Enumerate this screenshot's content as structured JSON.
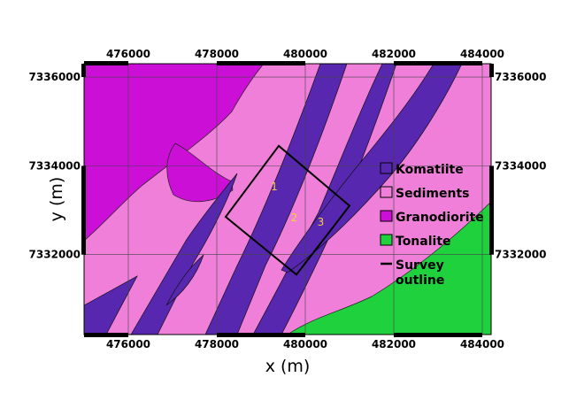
{
  "map": {
    "x_axis_label": "x (m)",
    "y_axis_label": "y (m)",
    "x_extent": [
      475000,
      484200
    ],
    "y_extent": [
      7330200,
      7336300
    ],
    "x_ticks": [
      476000,
      478000,
      480000,
      482000,
      484000
    ],
    "y_ticks": [
      7332000,
      7334000,
      7336000
    ],
    "x_tick_labels": [
      "476000",
      "478000",
      "480000",
      "482000",
      "484000"
    ],
    "y_tick_labels": [
      "7332000",
      "7334000",
      "7336000"
    ],
    "grid": true
  },
  "legend": {
    "placement": "right",
    "items": [
      {
        "label": "Komatiite",
        "color": "#5727b0",
        "symbol": "swatch"
      },
      {
        "label": "Sediments",
        "color": "#f07fd9",
        "symbol": "swatch"
      },
      {
        "label": "Granodiorite",
        "color": "#cc0fd6",
        "symbol": "swatch"
      },
      {
        "label": "Tonalite",
        "color": "#1fd13c",
        "symbol": "swatch"
      },
      {
        "label": "Survey outline",
        "label_lines": [
          "Survey",
          "outline"
        ],
        "color": "#000000",
        "symbol": "line"
      }
    ]
  },
  "units": {
    "granodiorite": {
      "color": "#cc0fd6"
    },
    "sediments": {
      "color": "#f07fd9"
    },
    "komatiite": {
      "color": "#5727b0"
    },
    "tonalite": {
      "color": "#1fd13c"
    }
  },
  "survey": {
    "line_labels": [
      "1",
      "2",
      "3"
    ],
    "corners": [
      [
        479400,
        7334450
      ],
      [
        481000,
        7333100
      ],
      [
        479800,
        7331550
      ],
      [
        478200,
        7332850
      ]
    ],
    "label_positions": [
      [
        479300,
        7333450
      ],
      [
        479750,
        7332750
      ],
      [
        480350,
        7332650
      ]
    ]
  },
  "colors": {
    "label_yellow": "#f2d23a",
    "frame": "#000000",
    "grid": "#444444"
  }
}
